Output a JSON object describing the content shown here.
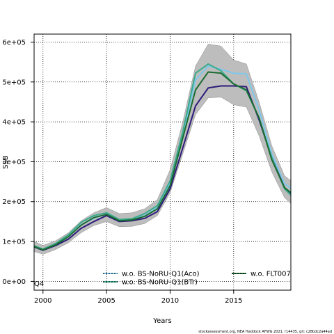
{
  "chart_data": {
    "type": "line",
    "xlabel": "Years",
    "ylabel": "SSB",
    "xlim": [
      1999.3,
      2019.5
    ],
    "ylim": [
      -22000,
      620000
    ],
    "x_ticks": [
      {
        "value": 2000,
        "label": "2000"
      },
      {
        "value": 2005,
        "label": "2005"
      },
      {
        "value": 2010,
        "label": "2010"
      },
      {
        "value": 2015,
        "label": "2015"
      }
    ],
    "y_ticks": [
      {
        "value": 0,
        "label": "0e+00"
      },
      {
        "value": 100000,
        "label": "1e+05"
      },
      {
        "value": 200000,
        "label": "2e+05"
      },
      {
        "value": 300000,
        "label": "3e+05"
      },
      {
        "value": 400000,
        "label": "4e+05"
      },
      {
        "value": 500000,
        "label": "5e+05"
      },
      {
        "value": 600000,
        "label": "6e+05"
      }
    ],
    "grid": true,
    "x": [
      1999,
      2000,
      2001,
      2002,
      2003,
      2004,
      2005,
      2006,
      2007,
      2008,
      2009,
      2010,
      2011,
      2012,
      2013,
      2014,
      2015,
      2016,
      2017,
      2018,
      2019,
      2020
    ],
    "band": {
      "color": "#bdbdbd",
      "upper": [
        105000,
        90000,
        102000,
        122000,
        152000,
        172000,
        185000,
        170000,
        172000,
        182000,
        205000,
        280000,
        400000,
        540000,
        595000,
        590000,
        555000,
        545000,
        450000,
        340000,
        265000,
        240000
      ],
      "lower": [
        78000,
        68000,
        80000,
        97000,
        122000,
        140000,
        150000,
        137000,
        138000,
        145000,
        165000,
        222000,
        320000,
        418000,
        460000,
        462000,
        443000,
        437000,
        365000,
        275000,
        210000,
        180000
      ]
    },
    "series": [
      {
        "color": "#2d1b7a",
        "values": [
          90000,
          78000,
          90000,
          106000,
          133000,
          150000,
          165000,
          150000,
          152000,
          158000,
          175000,
          232000,
          335000,
          440000,
          485000,
          490000,
          490000,
          488000,
          405000,
          310000,
          235000,
          208000
        ]
      },
      {
        "color": "#7ec8ea",
        "values": [
          92000,
          80000,
          93000,
          112000,
          142000,
          158000,
          169000,
          153000,
          155000,
          165000,
          185000,
          245000,
          365000,
          505000,
          540000,
          532000,
          522000,
          520000,
          430000,
          320000,
          245000,
          222000
        ]
      },
      {
        "color": "#3aaa8c",
        "values": [
          93000,
          81000,
          95000,
          117000,
          148000,
          165000,
          172000,
          155000,
          157000,
          170000,
          190000,
          252000,
          375000,
          522000,
          545000,
          528000,
          495000,
          478000,
          410000,
          310000,
          232000,
          200000
        ]
      },
      {
        "color": "#1a6b30",
        "values": [
          91000,
          79000,
          92000,
          112000,
          141000,
          160000,
          168000,
          152000,
          154000,
          163000,
          182000,
          240000,
          360000,
          480000,
          525000,
          522000,
          495000,
          480000,
          410000,
          305000,
          235000,
          210000
        ]
      }
    ],
    "legend": {
      "placement": "bottom",
      "entries": [
        {
          "label": "w.o. BS-NoRU-Q1(Aco)",
          "color": "#7ec8ea"
        },
        {
          "label": "w.o. BS-NoRU-Q1(BTr)",
          "color": "#3aaa8c"
        },
        {
          "label": "w.o. FLT007",
          "color": "#1a6b30"
        }
      ]
    },
    "annotations": [
      "Q4"
    ]
  },
  "footer": "stockassessment.org, NEA Haddock AFWG 2021, r14435, git: c28bdc2a44ad"
}
